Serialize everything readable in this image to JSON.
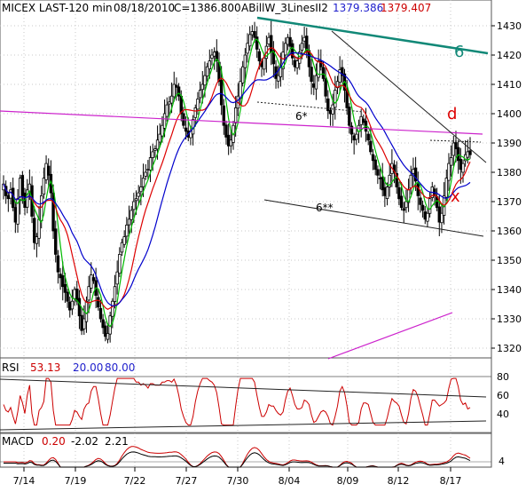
{
  "header": {
    "symbol": "MICEX LAST-120 min",
    "date": "08/18/2010",
    "close": "C=1386.800",
    "study": "ABillW_3LinesII2",
    "study_val1": "1379.386",
    "study_val2": "1379.407",
    "study_val1_color": "#1f1fcc",
    "study_val2_color": "#cc0000"
  },
  "annotations": {
    "trendline_label": "6",
    "line_6star": "6*",
    "line_6starstar": "6**",
    "point_d": "d",
    "point_x": "x"
  },
  "rsi": {
    "title": "RSI",
    "value": "53.13",
    "low": "20.00",
    "high": "80.00",
    "ticks": [
      "80",
      "60",
      "40"
    ]
  },
  "macd": {
    "title": "MACD",
    "v1": "0.20",
    "v2": "-2.02",
    "v3": "2.21",
    "ticks": [
      "4"
    ]
  },
  "colors": {
    "sma_fast": "#00bb00",
    "sma_mid": "#dd0000",
    "sma_slow": "#0000cc",
    "trend_top": "#118877",
    "magenta": "#cc22cc",
    "annot_red": "#dd0000"
  },
  "chart_data": {
    "type": "candlestick",
    "title": "MICEX LAST-120 min",
    "y_ticks": [
      1430,
      1420,
      1410,
      1400,
      1390,
      1380,
      1370,
      1360,
      1350,
      1340,
      1330,
      1320
    ],
    "ylim": [
      1315,
      1435
    ],
    "x_labels": [
      "7/14",
      "7/19",
      "7/22",
      "7/27",
      "7/30",
      "8/04",
      "8/09",
      "8/12",
      "8/17"
    ],
    "series": [
      {
        "name": "close",
        "values": [
          1376,
          1372,
          1371,
          1374,
          1368,
          1363,
          1371,
          1378,
          1372,
          1368,
          1374,
          1376,
          1365,
          1356,
          1358,
          1364,
          1372,
          1378,
          1383,
          1379,
          1373,
          1360,
          1352,
          1346,
          1344,
          1341,
          1339,
          1336,
          1333,
          1336,
          1340,
          1336,
          1331,
          1326,
          1330,
          1336,
          1341,
          1345,
          1343,
          1338,
          1334,
          1330,
          1327,
          1324,
          1325,
          1331,
          1336,
          1341,
          1346,
          1352,
          1356,
          1358,
          1362,
          1364,
          1367,
          1370,
          1371,
          1373,
          1375,
          1378,
          1380,
          1381,
          1385,
          1387,
          1388,
          1391,
          1393,
          1396,
          1400,
          1403,
          1404,
          1406,
          1410,
          1409,
          1406,
          1400,
          1396,
          1394,
          1392,
          1394,
          1398,
          1402,
          1405,
          1408,
          1410,
          1413,
          1416,
          1418,
          1420,
          1421,
          1418,
          1411,
          1403,
          1396,
          1392,
          1389,
          1391,
          1396,
          1402,
          1406,
          1411,
          1416,
          1420,
          1424,
          1427,
          1428,
          1426,
          1422,
          1418,
          1416,
          1419,
          1423,
          1426,
          1421,
          1417,
          1412,
          1413,
          1416,
          1421,
          1424,
          1426,
          1423,
          1419,
          1416,
          1418,
          1421,
          1424,
          1426,
          1421,
          1416,
          1411,
          1409,
          1413,
          1418,
          1416,
          1412,
          1406,
          1401,
          1400,
          1403,
          1408,
          1411,
          1415,
          1413,
          1408,
          1402,
          1396,
          1393,
          1391,
          1393,
          1396,
          1399,
          1397,
          1394,
          1391,
          1387,
          1384,
          1381,
          1379,
          1378,
          1374,
          1372,
          1375,
          1379,
          1383,
          1380,
          1375,
          1371,
          1368,
          1367,
          1370,
          1374,
          1379,
          1381,
          1377,
          1372,
          1369,
          1367,
          1364,
          1366,
          1371,
          1375,
          1372,
          1368,
          1363,
          1366,
          1372,
          1378,
          1383,
          1385,
          1390,
          1388,
          1384,
          1381,
          1383,
          1386,
          1387,
          1386
        ]
      }
    ]
  }
}
